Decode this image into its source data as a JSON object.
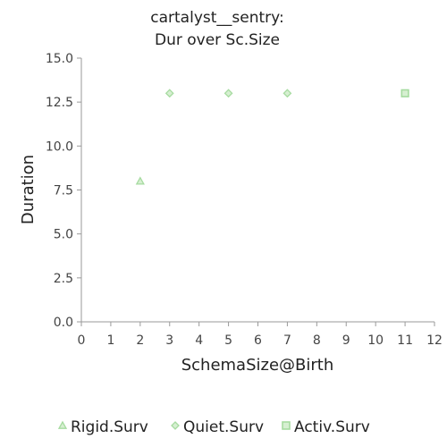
{
  "chart_data": {
    "type": "scatter",
    "title": [
      "cartalyst__sentry:",
      "Dur over Sc.Size"
    ],
    "xlabel": "SchemaSize@Birth",
    "ylabel": "Duration",
    "xlim": [
      0,
      12
    ],
    "ylim": [
      0,
      15
    ],
    "xticks": [
      0,
      1,
      2,
      3,
      4,
      5,
      6,
      7,
      8,
      9,
      10,
      11,
      12
    ],
    "yticks": [
      0.0,
      2.5,
      5.0,
      7.5,
      10.0,
      12.5,
      15.0
    ],
    "ytick_labels": [
      "0.0",
      "2.5",
      "5.0",
      "7.5",
      "10.0",
      "12.5",
      "15.0"
    ],
    "grid": false,
    "legend_position": "bottom",
    "series": [
      {
        "name": "Rigid.Surv",
        "marker": "triangle",
        "color": "#a6dba0",
        "points": [
          {
            "x": 2,
            "y": 8
          }
        ]
      },
      {
        "name": "Quiet.Surv",
        "marker": "diamond",
        "color": "#a6dba0",
        "points": [
          {
            "x": 3,
            "y": 13
          },
          {
            "x": 5,
            "y": 13
          },
          {
            "x": 7,
            "y": 13
          }
        ]
      },
      {
        "name": "Activ.Surv",
        "marker": "square",
        "color": "#a6dba0",
        "points": [
          {
            "x": 11,
            "y": 13
          }
        ]
      }
    ]
  }
}
